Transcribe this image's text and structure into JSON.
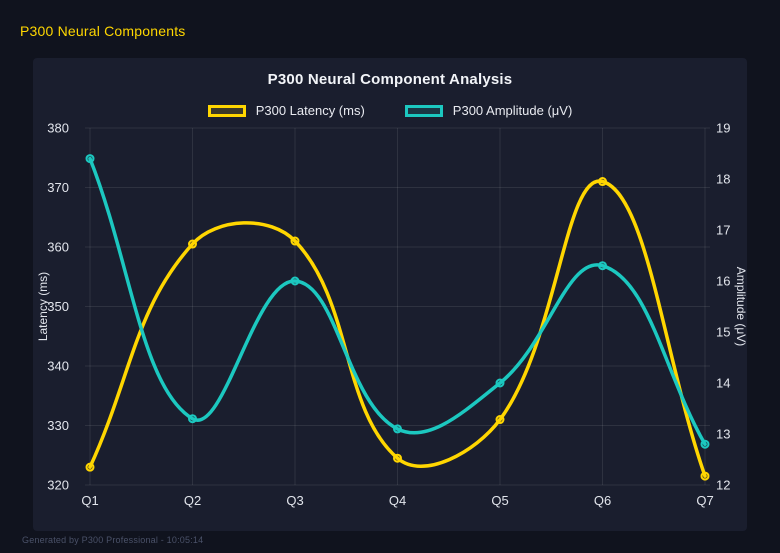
{
  "header": {
    "title": "P300 Neural Components"
  },
  "footer": {
    "text": "Generated by P300 Professional - 10:05:14"
  },
  "theme": {
    "page_bg": "#10131E",
    "card_bg": "#1A1E2E",
    "title_color": "#F2F4F8",
    "tick_color": "#E2E5EC",
    "grid_color": "rgba(255,255,255,0.09)",
    "footer_color": "#4A5168",
    "header_color": "#FFD700",
    "latency_color": "#FFD600",
    "amplitude_color": "#1CC8C0"
  },
  "chart_data": {
    "type": "line",
    "title": "P300 Neural Component Analysis",
    "categories": [
      "Q1",
      "Q2",
      "Q3",
      "Q4",
      "Q5",
      "Q6",
      "Q7"
    ],
    "series": [
      {
        "name": "P300 Latency (ms)",
        "axis": "left",
        "color": "#FFD600",
        "values": [
          323,
          360.5,
          361,
          324.5,
          331,
          371,
          321.5
        ]
      },
      {
        "name": "P300 Amplitude (μV)",
        "axis": "right",
        "color": "#1CC8C0",
        "values": [
          18.4,
          13.3,
          16.0,
          13.1,
          14.0,
          16.3,
          12.8
        ]
      }
    ],
    "left_axis": {
      "label": "Latency (ms)",
      "min": 320,
      "max": 380,
      "step": 10,
      "ticks": [
        "380",
        "370",
        "360",
        "350",
        "340",
        "330",
        "320"
      ]
    },
    "right_axis": {
      "label": "Amplitude (μV)",
      "min": 12,
      "max": 19,
      "step": 1,
      "ticks": [
        "19",
        "18",
        "17",
        "16",
        "15",
        "14",
        "13",
        "12"
      ]
    },
    "grid": true,
    "legend_position": "top",
    "line_smoothing": "spline tension 0.4",
    "point_style": "circle"
  }
}
